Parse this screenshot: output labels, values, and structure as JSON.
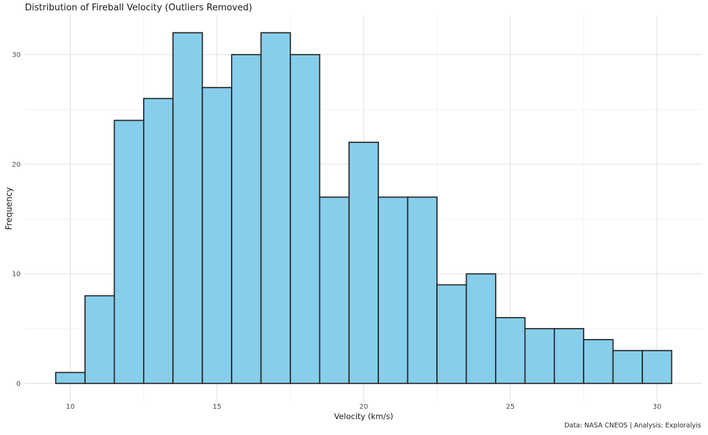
{
  "figure": {
    "title": "Distribution of Fireball Velocity (Outliers Removed)",
    "x_axis_label": "Velocity (km/s)",
    "y_axis_label": "Frequency",
    "caption": "Data: NASA CNEOS | Analysis: Exploralyis"
  },
  "chart_data": {
    "type": "bar",
    "subtype": "histogram",
    "title": "Distribution of Fireball Velocity (Outliers Removed)",
    "xlabel": "Velocity (km/s)",
    "ylabel": "Frequency",
    "caption": "Data: NASA CNEOS | Analysis: Exploralyis",
    "bin_width": 1,
    "bin_edges": [
      9.5,
      10.5,
      11.5,
      12.5,
      13.5,
      14.5,
      15.5,
      16.5,
      17.5,
      18.5,
      19.5,
      20.5,
      21.5,
      22.5,
      23.5,
      24.5,
      25.5,
      26.5,
      27.5,
      28.5,
      29.5,
      30.5
    ],
    "bin_centers": [
      10,
      11,
      12,
      13,
      14,
      15,
      16,
      17,
      18,
      19,
      20,
      21,
      22,
      23,
      24,
      25,
      26,
      27,
      28,
      29,
      30
    ],
    "values": [
      1,
      8,
      24,
      26,
      32,
      27,
      30,
      32,
      30,
      17,
      22,
      17,
      17,
      9,
      10,
      6,
      5,
      5,
      4,
      3,
      3
    ],
    "x_ticks": [
      10,
      15,
      20,
      25,
      30
    ],
    "x_minor_gridlines": [
      12.5,
      17.5,
      22.5,
      27.5
    ],
    "y_ticks": [
      0,
      10,
      20,
      30
    ],
    "y_minor_gridlines": [
      5,
      15,
      25
    ],
    "x_range": [
      8.45,
      31.55
    ],
    "y_range": [
      -1.68,
      33.6
    ],
    "grid": true,
    "legend": "none",
    "colors": {
      "background": "#ffffff",
      "bar_fill": "#87CEEB",
      "bar_edge": "#262626",
      "grid_major": "#e5e5e5",
      "grid_minor": "#f2f2f2",
      "tick_label": "#4d4d4d",
      "text": "#1a1a1a"
    }
  }
}
